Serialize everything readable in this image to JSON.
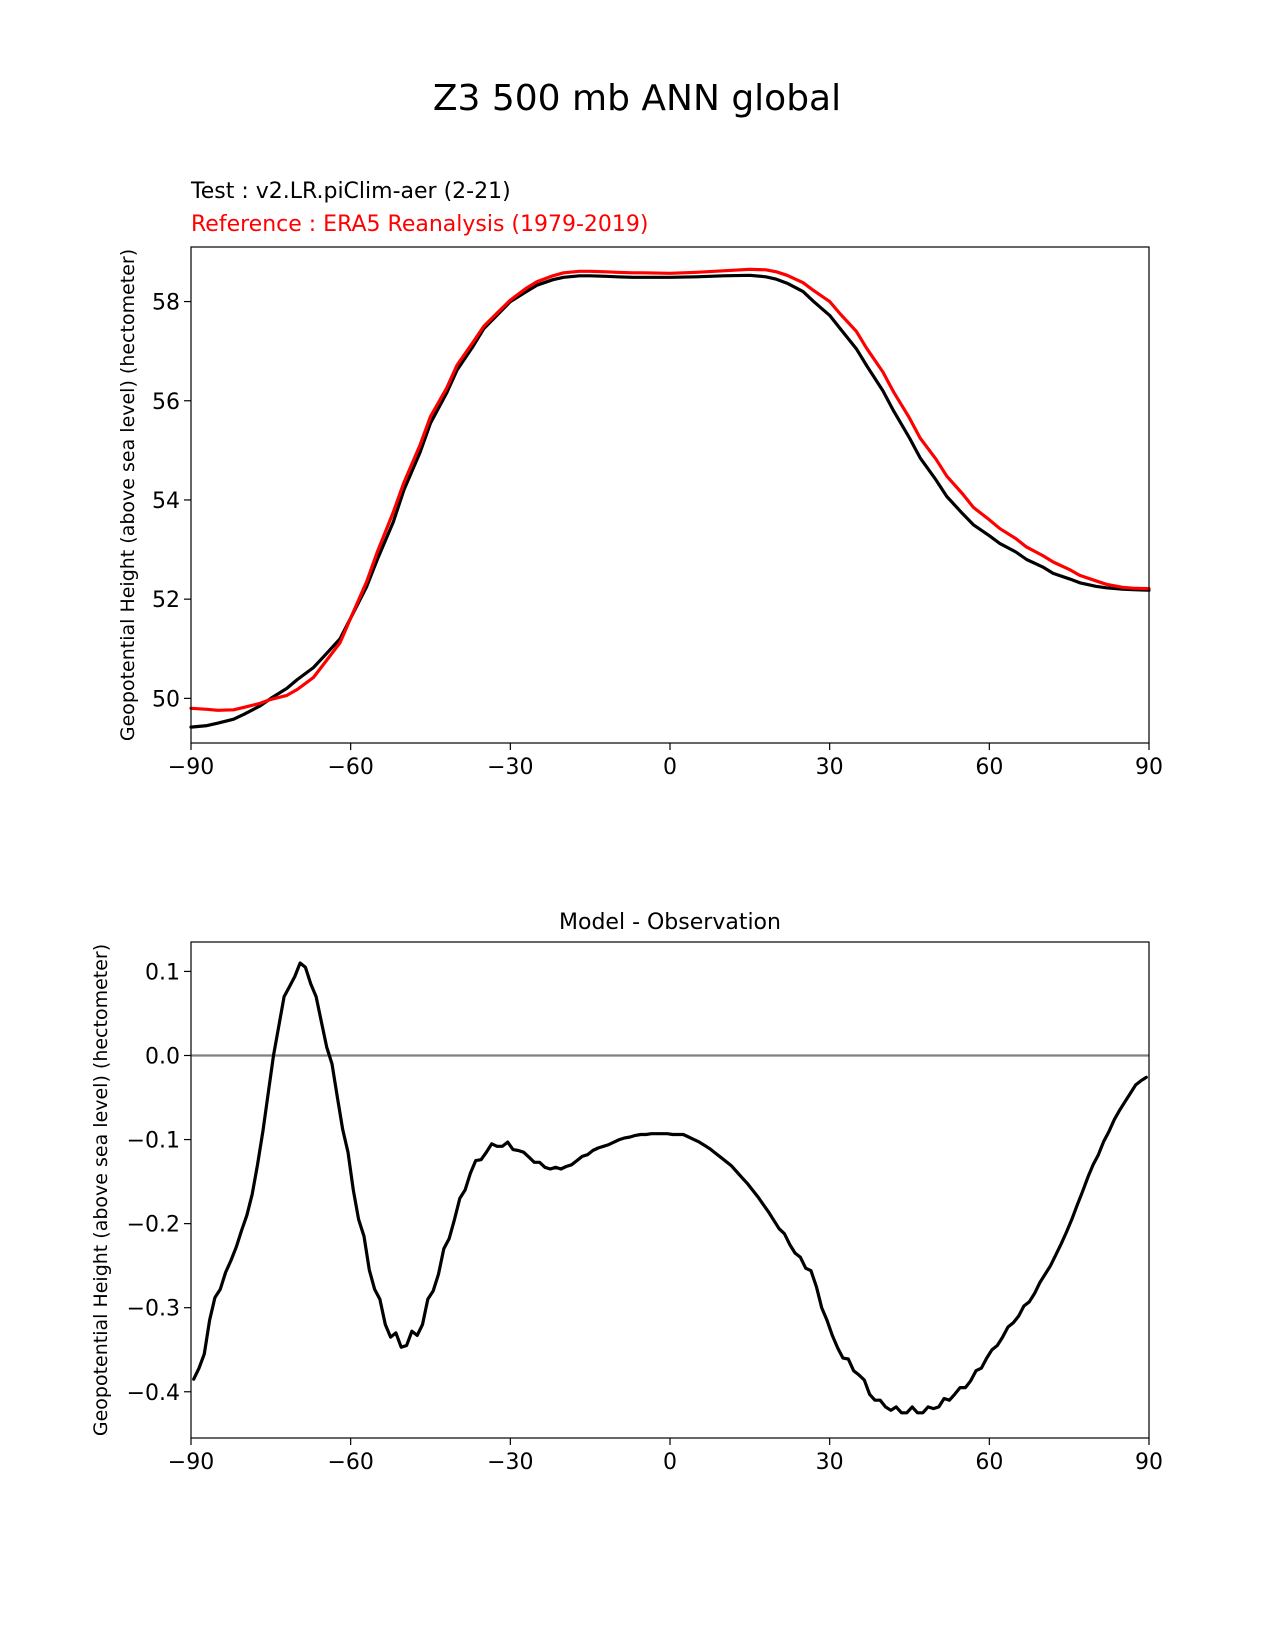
{
  "figure": {
    "suptitle": "Z3 500 mb ANN global"
  },
  "chart_data": [
    {
      "type": "line",
      "test_label": "Test : v2.LR.piClim-aer (2-21)",
      "reference_label": "Reference : ERA5 Reanalysis (1979-2019)",
      "title": "",
      "xlabel": "",
      "ylabel": "Geopotential Height (above sea level) (hectometer)",
      "xlim": [
        -90,
        90
      ],
      "ylim": [
        49.1,
        59.1
      ],
      "xticks": [
        -90,
        -60,
        -30,
        0,
        30,
        60,
        90
      ],
      "xtick_labels": [
        "−90",
        "−60",
        "−30",
        "0",
        "30",
        "60",
        "90"
      ],
      "yticks": [
        50,
        52,
        54,
        56,
        58
      ],
      "ytick_labels": [
        "50",
        "52",
        "54",
        "56",
        "58"
      ],
      "grid": false,
      "series": [
        {
          "color": "#000000",
          "x": [
            -90,
            -87,
            -85,
            -82,
            -80,
            -77,
            -75,
            -72,
            -70,
            -67,
            -65,
            -62,
            -60,
            -57,
            -55,
            -52,
            -50,
            -47,
            -45,
            -42,
            -40,
            -37,
            -35,
            -32,
            -30,
            -27,
            -25,
            -22,
            -20,
            -17,
            -15,
            -12,
            -10,
            -7,
            -5,
            0,
            5,
            10,
            15,
            18,
            20,
            22,
            25,
            27,
            30,
            32,
            35,
            37,
            40,
            42,
            45,
            47,
            50,
            52,
            55,
            57,
            60,
            62,
            65,
            67,
            70,
            72,
            75,
            77,
            80,
            82,
            85,
            87,
            90
          ],
          "y": [
            49.42,
            49.45,
            49.5,
            49.58,
            49.68,
            49.85,
            50.0,
            50.2,
            50.38,
            50.62,
            50.85,
            51.2,
            51.62,
            52.25,
            52.8,
            53.55,
            54.2,
            54.95,
            55.55,
            56.15,
            56.62,
            57.1,
            57.45,
            57.78,
            58.0,
            58.2,
            58.33,
            58.44,
            58.49,
            58.52,
            58.52,
            58.51,
            58.5,
            58.49,
            58.49,
            58.49,
            58.5,
            58.52,
            58.53,
            58.5,
            58.45,
            58.37,
            58.2,
            58.0,
            57.72,
            57.45,
            57.05,
            56.7,
            56.2,
            55.8,
            55.25,
            54.85,
            54.4,
            54.07,
            53.72,
            53.5,
            53.28,
            53.12,
            52.95,
            52.8,
            52.65,
            52.52,
            52.41,
            52.33,
            52.26,
            52.23,
            52.2,
            52.19,
            52.18
          ]
        },
        {
          "color": "#ff0000",
          "x": [
            -90,
            -87,
            -85,
            -82,
            -80,
            -77,
            -75,
            -72,
            -70,
            -67,
            -65,
            -62,
            -60,
            -57,
            -55,
            -52,
            -50,
            -47,
            -45,
            -42,
            -40,
            -37,
            -35,
            -32,
            -30,
            -27,
            -25,
            -22,
            -20,
            -17,
            -15,
            -12,
            -10,
            -7,
            -5,
            0,
            5,
            10,
            15,
            18,
            20,
            22,
            25,
            27,
            30,
            32,
            35,
            37,
            40,
            42,
            45,
            47,
            50,
            52,
            55,
            57,
            60,
            62,
            65,
            67,
            70,
            72,
            75,
            77,
            80,
            82,
            85,
            87,
            90
          ],
          "y": [
            49.8,
            49.78,
            49.76,
            49.77,
            49.82,
            49.9,
            49.98,
            50.06,
            50.18,
            50.42,
            50.7,
            51.12,
            51.62,
            52.35,
            52.95,
            53.75,
            54.35,
            55.1,
            55.68,
            56.25,
            56.72,
            57.18,
            57.5,
            57.82,
            58.03,
            58.27,
            58.4,
            58.52,
            58.58,
            58.61,
            58.61,
            58.6,
            58.59,
            58.58,
            58.58,
            58.57,
            58.59,
            58.62,
            58.65,
            58.64,
            58.6,
            58.53,
            58.38,
            58.22,
            58.0,
            57.75,
            57.4,
            57.05,
            56.58,
            56.18,
            55.65,
            55.25,
            54.82,
            54.48,
            54.12,
            53.85,
            53.6,
            53.42,
            53.22,
            53.05,
            52.88,
            52.75,
            52.6,
            52.48,
            52.37,
            52.3,
            52.24,
            52.22,
            52.21
          ]
        }
      ]
    },
    {
      "type": "line",
      "title": "Model - Observation",
      "xlabel": "",
      "ylabel": "Geopotential Height (above sea level) (hectometer)",
      "xlim": [
        -90,
        90
      ],
      "ylim": [
        -0.455,
        0.135
      ],
      "xticks": [
        -90,
        -60,
        -30,
        0,
        30,
        60,
        90
      ],
      "xtick_labels": [
        "−90",
        "−60",
        "−30",
        "0",
        "30",
        "60",
        "90"
      ],
      "yticks": [
        0.1,
        0.0,
        -0.1,
        -0.2,
        -0.3,
        -0.4
      ],
      "ytick_labels": [
        "0.1",
        "0.0",
        "−0.1",
        "−0.2",
        "−0.3",
        "−0.4"
      ],
      "grid": false,
      "zero_line": {
        "y": 0,
        "color": "#808080"
      },
      "series": [
        {
          "color": "#000000",
          "x": [
            -89.5,
            -88.5,
            -87.5,
            -86.5,
            -85.5,
            -84.5,
            -83.5,
            -82.5,
            -81.5,
            -80.5,
            -79.5,
            -78.5,
            -77.5,
            -76.5,
            -75.5,
            -74.5,
            -73.5,
            -72.5,
            -71.5,
            -70.5,
            -69.5,
            -68.5,
            -67.5,
            -66.5,
            -65.5,
            -64.5,
            -63.5,
            -62.5,
            -61.5,
            -60.5,
            -59.5,
            -58.5,
            -57.5,
            -56.5,
            -55.5,
            -54.5,
            -53.5,
            -52.5,
            -51.5,
            -50.5,
            -49.5,
            -48.5,
            -47.5,
            -46.5,
            -45.5,
            -44.5,
            -43.5,
            -42.5,
            -41.5,
            -40.5,
            -39.5,
            -38.5,
            -37.5,
            -36.5,
            -35.5,
            -34.5,
            -33.5,
            -32.5,
            -31.5,
            -30.5,
            -29.5,
            -28.5,
            -27.5,
            -26.5,
            -25.5,
            -24.5,
            -23.5,
            -22.5,
            -21.5,
            -20.5,
            -19.5,
            -18.5,
            -17.5,
            -16.5,
            -15.5,
            -14.5,
            -13.5,
            -12.5,
            -11.5,
            -10.5,
            -9.5,
            -8.5,
            -7.5,
            -6.5,
            -5.5,
            -4.5,
            -3.5,
            -2.5,
            -1.5,
            -0.5,
            0.5,
            1.5,
            2.5,
            3.5,
            4.5,
            5.5,
            6.5,
            7.5,
            8.5,
            9.5,
            10.5,
            11.5,
            12.5,
            13.5,
            14.5,
            15.5,
            16.5,
            17.5,
            18.5,
            19.5,
            20.5,
            21.5,
            22.5,
            23.5,
            24.5,
            25.5,
            26.5,
            27.5,
            28.5,
            29.5,
            30.5,
            31.5,
            32.5,
            33.5,
            34.5,
            35.5,
            36.5,
            37.5,
            38.5,
            39.5,
            40.5,
            41.5,
            42.5,
            43.5,
            44.5,
            45.5,
            46.5,
            47.5,
            48.5,
            49.5,
            50.5,
            51.5,
            52.5,
            53.5,
            54.5,
            55.5,
            56.5,
            57.5,
            58.5,
            59.5,
            60.5,
            61.5,
            62.5,
            63.5,
            64.5,
            65.5,
            66.5,
            67.5,
            68.5,
            69.5,
            70.5,
            71.5,
            72.5,
            73.5,
            74.5,
            75.5,
            76.5,
            77.5,
            78.5,
            79.5,
            80.5,
            81.5,
            82.5,
            83.5,
            84.5,
            85.5,
            86.5,
            87.5,
            88.5,
            89.5
          ],
          "y": [
            -0.385,
            -0.372,
            -0.355,
            -0.315,
            -0.288,
            -0.278,
            -0.258,
            -0.244,
            -0.228,
            -0.208,
            -0.19,
            -0.165,
            -0.13,
            -0.09,
            -0.045,
            0.0,
            0.035,
            0.07,
            0.082,
            0.094,
            0.11,
            0.105,
            0.085,
            0.07,
            0.04,
            0.01,
            -0.01,
            -0.05,
            -0.088,
            -0.115,
            -0.16,
            -0.195,
            -0.215,
            -0.255,
            -0.278,
            -0.29,
            -0.32,
            -0.335,
            -0.33,
            -0.347,
            -0.345,
            -0.328,
            -0.333,
            -0.32,
            -0.29,
            -0.28,
            -0.26,
            -0.23,
            -0.218,
            -0.195,
            -0.17,
            -0.16,
            -0.14,
            -0.125,
            -0.124,
            -0.115,
            -0.105,
            -0.108,
            -0.108,
            -0.103,
            -0.112,
            -0.113,
            -0.115,
            -0.121,
            -0.127,
            -0.127,
            -0.133,
            -0.135,
            -0.133,
            -0.135,
            -0.132,
            -0.13,
            -0.125,
            -0.12,
            -0.118,
            -0.113,
            -0.11,
            -0.108,
            -0.106,
            -0.103,
            -0.1,
            -0.098,
            -0.097,
            -0.095,
            -0.094,
            -0.094,
            -0.093,
            -0.093,
            -0.093,
            -0.093,
            -0.094,
            -0.094,
            -0.094,
            -0.097,
            -0.1,
            -0.103,
            -0.107,
            -0.111,
            -0.116,
            -0.121,
            -0.126,
            -0.131,
            -0.138,
            -0.145,
            -0.152,
            -0.16,
            -0.168,
            -0.177,
            -0.186,
            -0.196,
            -0.206,
            -0.212,
            -0.225,
            -0.235,
            -0.24,
            -0.253,
            -0.256,
            -0.275,
            -0.3,
            -0.315,
            -0.333,
            -0.348,
            -0.36,
            -0.361,
            -0.375,
            -0.38,
            -0.386,
            -0.403,
            -0.41,
            -0.41,
            -0.418,
            -0.422,
            -0.418,
            -0.425,
            -0.425,
            -0.418,
            -0.425,
            -0.425,
            -0.418,
            -0.42,
            -0.418,
            -0.408,
            -0.41,
            -0.403,
            -0.395,
            -0.395,
            -0.387,
            -0.375,
            -0.372,
            -0.36,
            -0.35,
            -0.345,
            -0.335,
            -0.323,
            -0.318,
            -0.31,
            -0.298,
            -0.293,
            -0.283,
            -0.27,
            -0.26,
            -0.25,
            -0.237,
            -0.224,
            -0.21,
            -0.195,
            -0.178,
            -0.162,
            -0.145,
            -0.13,
            -0.118,
            -0.102,
            -0.09,
            -0.076,
            -0.065,
            -0.055,
            -0.045,
            -0.035,
            -0.03,
            -0.026
          ]
        }
      ]
    }
  ]
}
